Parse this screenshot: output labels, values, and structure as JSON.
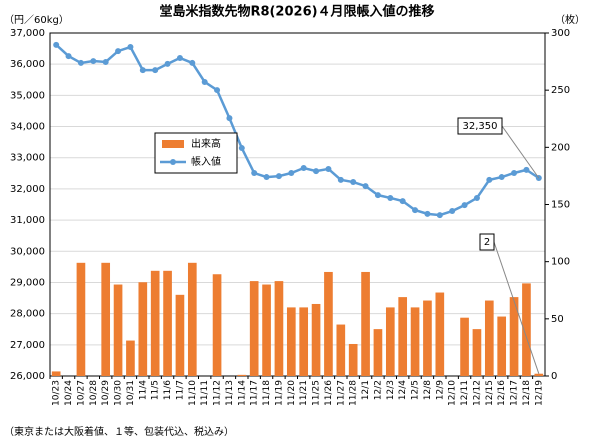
{
  "chart_data": {
    "type": "combo",
    "title": "堂島米指数先物R8(2026)４月限帳入値の推移",
    "y_label": "（円／60kg）",
    "y2_label": "（枚）",
    "note": "（東京または大阪着値、１等、包装代込、税込み）",
    "categories": [
      "10/23",
      "10/24",
      "10/27",
      "10/28",
      "10/29",
      "10/30",
      "10/31",
      "11/4",
      "11/5",
      "11/6",
      "11/7",
      "11/10",
      "11/11",
      "11/12",
      "11/13",
      "11/14",
      "11/17",
      "11/18",
      "11/19",
      "11/20",
      "11/21",
      "11/25",
      "11/26",
      "11/27",
      "11/28",
      "12/1",
      "12/2",
      "12/3",
      "12/4",
      "12/5",
      "12/8",
      "12/9",
      "12/10",
      "12/11",
      "12/12",
      "12/15",
      "12/16",
      "12/17",
      "12/18",
      "12/19"
    ],
    "series": [
      {
        "name": "出来高",
        "type": "bar",
        "axis": "y2",
        "color": "#ed7d31",
        "values": [
          4,
          0,
          99,
          0,
          99,
          80,
          31,
          82,
          92,
          92,
          71,
          99,
          0,
          89,
          0,
          1,
          83,
          80,
          83,
          60,
          60,
          63,
          91,
          45,
          28,
          91,
          41,
          60,
          69,
          60,
          66,
          73,
          0,
          51,
          41,
          66,
          52,
          69,
          81,
          2
        ]
      },
      {
        "name": "帳入値",
        "type": "line",
        "color": "#5b9bd5",
        "values": [
          36620,
          36260,
          36040,
          36100,
          36070,
          36420,
          36550,
          35810,
          35810,
          36010,
          36200,
          36040,
          35430,
          35170,
          34270,
          33310,
          32510,
          32380,
          32410,
          32510,
          32670,
          32570,
          32640,
          32290,
          32220,
          32090,
          31800,
          31710,
          31610,
          31320,
          31200,
          31160,
          31290,
          31480,
          31710,
          32290,
          32380,
          32510,
          32610,
          32350
        ]
      }
    ],
    "annotations": [
      {
        "text": "32,350",
        "series": 1,
        "index": 39
      },
      {
        "text": "2",
        "series": 0,
        "index": 39
      }
    ],
    "ylim": [
      26000,
      37000
    ],
    "yticks": [
      {
        "value": 26000,
        "label": "26,000"
      },
      {
        "value": 27000,
        "label": "27,000"
      },
      {
        "value": 28000,
        "label": "28,000"
      },
      {
        "value": 29000,
        "label": "29,000"
      },
      {
        "value": 30000,
        "label": "30,000"
      },
      {
        "value": 31000,
        "label": "31,000"
      },
      {
        "value": 32000,
        "label": "32,000"
      },
      {
        "value": 33000,
        "label": "33,000"
      },
      {
        "value": 34000,
        "label": "34,000"
      },
      {
        "value": 35000,
        "label": "35,000"
      },
      {
        "value": 36000,
        "label": "36,000"
      },
      {
        "value": 37000,
        "label": "37,000"
      }
    ],
    "y2lim": [
      0,
      300
    ],
    "y2ticks": [
      0,
      50,
      100,
      150,
      200,
      250,
      300
    ],
    "grid": true
  }
}
